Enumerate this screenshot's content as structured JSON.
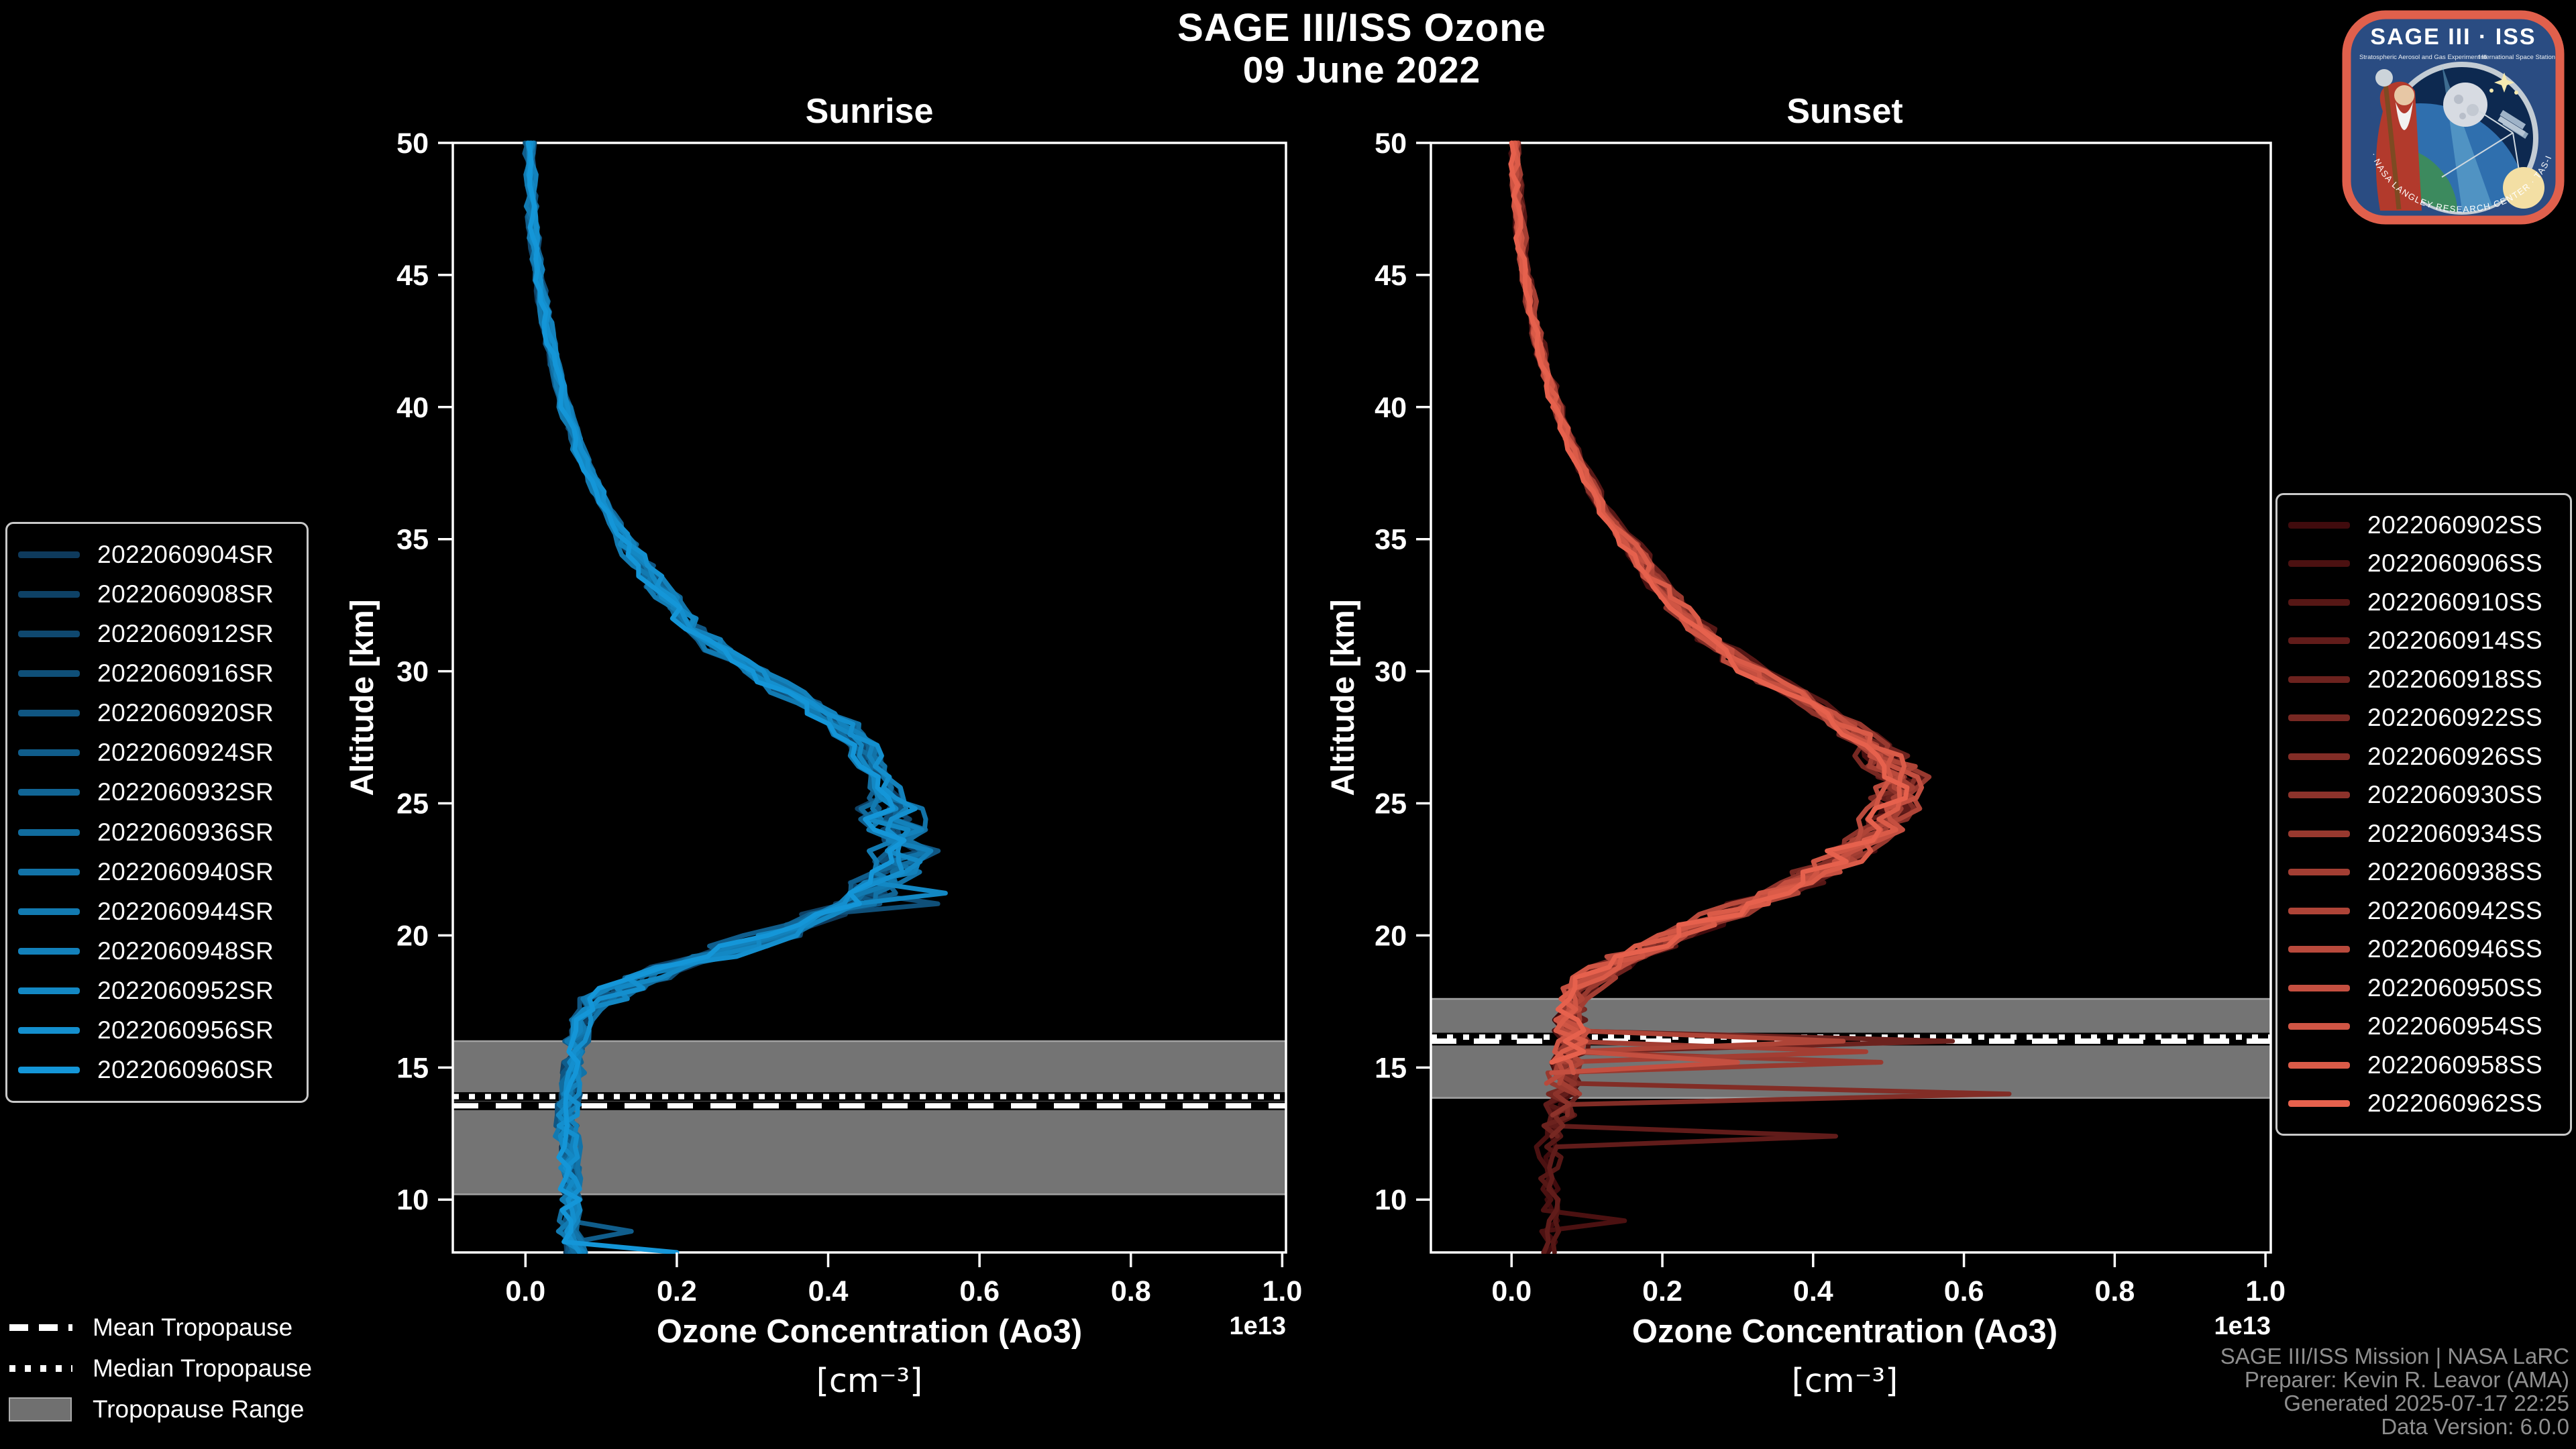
{
  "header": {
    "title": "SAGE III/ISS Ozone",
    "date": "09 June 2022"
  },
  "tropopause_legend": {
    "mean": "Mean Tropopause",
    "median": "Median Tropopause",
    "range": "Tropopause Range"
  },
  "credits": {
    "line1": "SAGE III/ISS Mission | NASA LaRC",
    "line2": "Preparer: Kevin R. Leavor (AMA)",
    "line3": "Generated 2025-07-17 22:25",
    "line4": "Data Version: 6.0.0"
  },
  "logo": {
    "title": "SAGE III · ISS",
    "subtitle_left": "Stratospheric Aerosol and Gas Experiment III",
    "subtitle_right": "International Space Station",
    "ring_text": "BALL · NASA LANGLEY RESEARCH CENTER · TAS-I · ESA"
  },
  "chart_data": [
    {
      "id": "sunrise",
      "type": "line",
      "title": "Sunrise",
      "xlabel": "Ozone Concentration (Ao3)",
      "xlabel_unit": "[cm⁻³]",
      "ylabel": "Altitude [km]",
      "axis_scale_label": "1e13",
      "xlim": [
        -0.096,
        1.005
      ],
      "ylim": [
        8,
        50
      ],
      "xticks": [
        0.0,
        0.2,
        0.4,
        0.6,
        0.8,
        1.0
      ],
      "yticks": [
        50,
        45,
        40,
        35,
        30,
        25,
        20,
        15,
        10
      ],
      "grid": false,
      "tropopause": {
        "mean_km": 13.55,
        "median_km": 13.9,
        "range_km": [
          10.2,
          16.0
        ]
      },
      "band_color": "#747474",
      "base_profile": [
        [
          50,
          0.004
        ],
        [
          48,
          0.007
        ],
        [
          46,
          0.012
        ],
        [
          44,
          0.022
        ],
        [
          42,
          0.035
        ],
        [
          40,
          0.052
        ],
        [
          38,
          0.075
        ],
        [
          36,
          0.11
        ],
        [
          34,
          0.155
        ],
        [
          32,
          0.21
        ],
        [
          31,
          0.245
        ],
        [
          30,
          0.3
        ],
        [
          29,
          0.36
        ],
        [
          28,
          0.415
        ],
        [
          27,
          0.45
        ],
        [
          26,
          0.47
        ],
        [
          25,
          0.48
        ],
        [
          24,
          0.495
        ],
        [
          23,
          0.5
        ],
        [
          22,
          0.47
        ],
        [
          21,
          0.42
        ],
        [
          20,
          0.33
        ],
        [
          19,
          0.22
        ],
        [
          18,
          0.125
        ],
        [
          17,
          0.075
        ],
        [
          16,
          0.068
        ],
        [
          15,
          0.062
        ],
        [
          14,
          0.058
        ],
        [
          13,
          0.052
        ],
        [
          12,
          0.058
        ],
        [
          11,
          0.058
        ],
        [
          10,
          0.062
        ],
        [
          9,
          0.058
        ],
        [
          8,
          0.065
        ]
      ],
      "noise_bands": [
        {
          "hi": 50,
          "lo": 35,
          "amp": 0.0045
        },
        {
          "hi": 35,
          "lo": 25,
          "amp": 0.013
        },
        {
          "hi": 25,
          "lo": 17.5,
          "amp": 0.035
        },
        {
          "hi": 17.5,
          "lo": 8,
          "amp": 0.013
        }
      ],
      "series": [
        {
          "label": "2022060904SR",
          "color": "#0e3a5c",
          "seed": 101,
          "offset": 0.02,
          "min_alt": 8,
          "spikes": []
        },
        {
          "label": "2022060908SR",
          "color": "#0e4165",
          "seed": 102,
          "offset": -0.03,
          "min_alt": 8,
          "spikes": []
        },
        {
          "label": "2022060912SR",
          "color": "#0f486f",
          "seed": 103,
          "offset": 0.01,
          "min_alt": 8,
          "spikes": []
        },
        {
          "label": "2022060916SR",
          "color": "#0f4f78",
          "seed": 104,
          "offset": -0.015,
          "min_alt": 8,
          "spikes": [
            [
              21.3,
              0.545
            ]
          ]
        },
        {
          "label": "2022060920SR",
          "color": "#105682",
          "seed": 105,
          "offset": 0.03,
          "min_alt": 8,
          "spikes": []
        },
        {
          "label": "2022060924SR",
          "color": "#105d8b",
          "seed": 106,
          "offset": -0.02,
          "min_alt": 8,
          "spikes": [
            [
              9.0,
              0.14
            ]
          ]
        },
        {
          "label": "2022060932SR",
          "color": "#116595",
          "seed": 107,
          "offset": 0.005,
          "min_alt": 8,
          "spikes": []
        },
        {
          "label": "2022060936SR",
          "color": "#116c9e",
          "seed": 108,
          "offset": -0.012,
          "min_alt": 8,
          "spikes": []
        },
        {
          "label": "2022060940SR",
          "color": "#1273a8",
          "seed": 109,
          "offset": 0.025,
          "min_alt": 8,
          "spikes": []
        },
        {
          "label": "2022060944SR",
          "color": "#127ab1",
          "seed": 110,
          "offset": -0.025,
          "min_alt": 8,
          "spikes": []
        },
        {
          "label": "2022060948SR",
          "color": "#1381bb",
          "seed": 111,
          "offset": 0.015,
          "min_alt": 8,
          "spikes": []
        },
        {
          "label": "2022060952SR",
          "color": "#1388c4",
          "seed": 112,
          "offset": -0.006,
          "min_alt": 8,
          "spikes": [
            [
              21.6,
              0.555
            ]
          ]
        },
        {
          "label": "2022060956SR",
          "color": "#148fce",
          "seed": 113,
          "offset": 0.02,
          "min_alt": 8,
          "spikes": []
        },
        {
          "label": "2022060960SR",
          "color": "#1496d8",
          "seed": 114,
          "offset": -0.02,
          "min_alt": 8,
          "spikes": [
            [
              8.2,
              0.2
            ]
          ]
        }
      ]
    },
    {
      "id": "sunset",
      "type": "line",
      "title": "Sunset",
      "xlabel": "Ozone Concentration (Ao3)",
      "xlabel_unit": "[cm⁻³]",
      "ylabel": "Altitude [km]",
      "axis_scale_label": "1e13",
      "xlim": [
        -0.107,
        1.007
      ],
      "ylim": [
        8,
        50
      ],
      "xticks": [
        0.0,
        0.2,
        0.4,
        0.6,
        0.8,
        1.0
      ],
      "yticks": [
        50,
        45,
        40,
        35,
        30,
        25,
        20,
        15,
        10
      ],
      "grid": false,
      "tropopause": {
        "mean_km": 16.0,
        "median_km": 16.15,
        "range_km": [
          13.85,
          17.6
        ]
      },
      "band_color": "#747474",
      "base_profile": [
        [
          50,
          0.004
        ],
        [
          48,
          0.008
        ],
        [
          46,
          0.014
        ],
        [
          44,
          0.025
        ],
        [
          42,
          0.04
        ],
        [
          40,
          0.06
        ],
        [
          38,
          0.088
        ],
        [
          36,
          0.125
        ],
        [
          34,
          0.175
        ],
        [
          32,
          0.235
        ],
        [
          31,
          0.27
        ],
        [
          30,
          0.32
        ],
        [
          29,
          0.385
        ],
        [
          28,
          0.44
        ],
        [
          27,
          0.485
        ],
        [
          26,
          0.515
        ],
        [
          25,
          0.515
        ],
        [
          24,
          0.49
        ],
        [
          23,
          0.445
        ],
        [
          22,
          0.385
        ],
        [
          21,
          0.3
        ],
        [
          20,
          0.22
        ],
        [
          19,
          0.14
        ],
        [
          18,
          0.09
        ],
        [
          17,
          0.075
        ],
        [
          16,
          0.085
        ],
        [
          15,
          0.07
        ],
        [
          14,
          0.068
        ],
        [
          13,
          0.058
        ],
        [
          12,
          0.05
        ],
        [
          11,
          0.048
        ],
        [
          10,
          0.05
        ],
        [
          9,
          0.05
        ],
        [
          8,
          0.052
        ]
      ],
      "noise_bands": [
        {
          "hi": 50,
          "lo": 35,
          "amp": 0.005
        },
        {
          "hi": 35,
          "lo": 27,
          "amp": 0.013
        },
        {
          "hi": 27,
          "lo": 18,
          "amp": 0.028
        },
        {
          "hi": 18,
          "lo": 13,
          "amp": 0.022
        },
        {
          "hi": 13,
          "lo": 8,
          "amp": 0.014
        }
      ],
      "series": [
        {
          "label": "2022060902SS",
          "color": "#400b0d",
          "seed": 201,
          "offset": 0.015,
          "min_alt": 8,
          "spikes": []
        },
        {
          "label": "2022060906SS",
          "color": "#4b1111",
          "seed": 202,
          "offset": -0.02,
          "min_alt": 8,
          "spikes": [
            [
              9.4,
              0.15
            ]
          ]
        },
        {
          "label": "2022060910SS",
          "color": "#561715",
          "seed": 203,
          "offset": 0.025,
          "min_alt": 8,
          "spikes": []
        },
        {
          "label": "2022060914SS",
          "color": "#611c1a",
          "seed": 204,
          "offset": -0.01,
          "min_alt": 8,
          "spikes": [
            [
              12.4,
              0.43
            ]
          ]
        },
        {
          "label": "2022060918SS",
          "color": "#6c221e",
          "seed": 205,
          "offset": 0.02,
          "min_alt": 12.2,
          "spikes": [
            [
              16.2,
              0.585
            ]
          ]
        },
        {
          "label": "2022060922SS",
          "color": "#772822",
          "seed": 206,
          "offset": -0.03,
          "min_alt": 12.2,
          "spikes": []
        },
        {
          "label": "2022060926SS",
          "color": "#822d26",
          "seed": 207,
          "offset": 0.01,
          "min_alt": 13.2,
          "spikes": [
            [
              13.9,
              0.66
            ]
          ]
        },
        {
          "label": "2022060930SS",
          "color": "#8d332b",
          "seed": 208,
          "offset": -0.02,
          "min_alt": 13.2,
          "spikes": []
        },
        {
          "label": "2022060934SS",
          "color": "#98392f",
          "seed": 209,
          "offset": 0.03,
          "min_alt": 13.8,
          "spikes": [
            [
              15.3,
              0.49
            ]
          ]
        },
        {
          "label": "2022060938SS",
          "color": "#a33e33",
          "seed": 210,
          "offset": -0.015,
          "min_alt": 13.8,
          "spikes": [
            [
              15.6,
              0.47
            ]
          ]
        },
        {
          "label": "2022060942SS",
          "color": "#ae4437",
          "seed": 211,
          "offset": 0.02,
          "min_alt": 14.2,
          "spikes": [
            [
              16.0,
              0.44
            ]
          ]
        },
        {
          "label": "2022060946SS",
          "color": "#b94a3c",
          "seed": 212,
          "offset": -0.025,
          "min_alt": 14.4,
          "spikes": []
        },
        {
          "label": "2022060950SS",
          "color": "#c44f40",
          "seed": 213,
          "offset": 0.012,
          "min_alt": 14.6,
          "spikes": [
            [
              15.1,
              0.3
            ]
          ]
        },
        {
          "label": "2022060954SS",
          "color": "#cf5544",
          "seed": 214,
          "offset": -0.008,
          "min_alt": 14.8,
          "spikes": []
        },
        {
          "label": "2022060958SS",
          "color": "#da5b48",
          "seed": 215,
          "offset": 0.018,
          "min_alt": 15.0,
          "spikes": []
        },
        {
          "label": "2022060962SS",
          "color": "#e6614d",
          "seed": 216,
          "offset": -0.018,
          "min_alt": 15.2,
          "spikes": []
        }
      ]
    }
  ]
}
